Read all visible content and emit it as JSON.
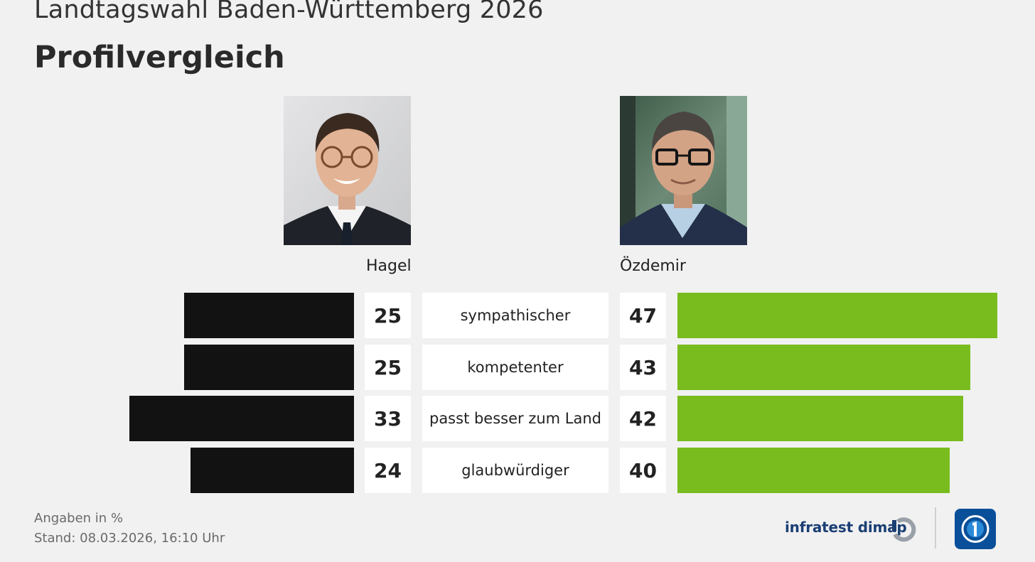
{
  "header": {
    "supertitle": "Landtagswahl Baden-Württemberg 2026",
    "title": "Profilvergleich"
  },
  "candidates": {
    "left": {
      "name": "Hagel",
      "color": "#121212"
    },
    "right": {
      "name": "Özdemir",
      "color": "#78bc1e"
    }
  },
  "chart_data": {
    "type": "bar",
    "categories": [
      "sympathischer",
      "kompetenter",
      "passt besser zum Land",
      "glaubwürdiger"
    ],
    "series": [
      {
        "name": "Hagel",
        "values": [
          25,
          25,
          33,
          24
        ]
      },
      {
        "name": "Özdemir",
        "values": [
          47,
          43,
          42,
          40
        ]
      }
    ],
    "unit": "%"
  },
  "footer": {
    "note_units": "Angaben in %",
    "note_date": "Stand:  08.03.2026, 16:10 Uhr",
    "brand": "infratest dimap"
  }
}
